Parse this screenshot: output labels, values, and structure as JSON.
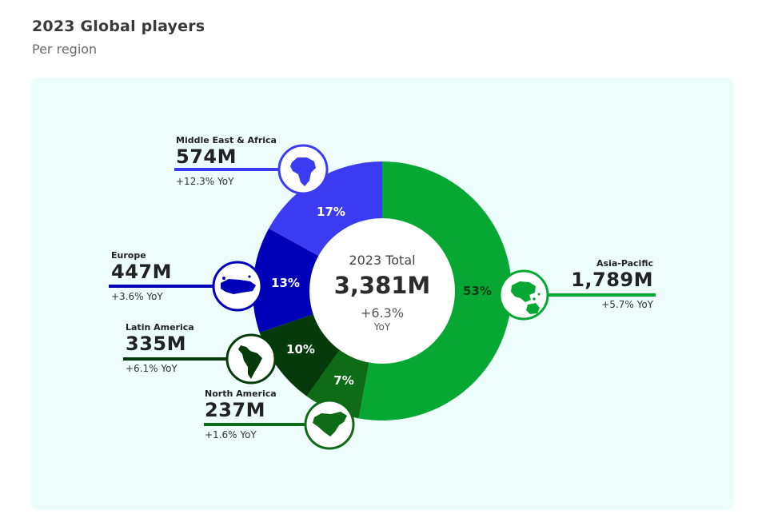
{
  "header": {
    "title": "2023 Global players",
    "subtitle": "Per region"
  },
  "colors": {
    "asia_pacific": "#06a833",
    "north_america": "#0e6b16",
    "latin_america": "#053b0a",
    "europe": "#0000b8",
    "middle_east_africa": "#3b3bf2",
    "panel_background": "#ecfdfc"
  },
  "center": {
    "title": "2023 Total",
    "value": "3,381M",
    "yoy": "+6.3%",
    "yoy_label": "YoY"
  },
  "regions": {
    "asia_pacific": {
      "name": "Asia-Pacific",
      "value": "1,789M",
      "yoy": "+5.7% YoY",
      "icon": "asia-pacific-map-icon"
    },
    "north_america": {
      "name": "North America",
      "value": "237M",
      "yoy": "+1.6% YoY",
      "icon": "north-america-map-icon"
    },
    "latin_america": {
      "name": "Latin America",
      "value": "335M",
      "yoy": "+6.1% YoY",
      "icon": "latin-america-map-icon"
    },
    "europe": {
      "name": "Europe",
      "value": "447M",
      "yoy": "+3.6% YoY",
      "icon": "europe-map-icon"
    },
    "middle_east_africa": {
      "name": "Middle East & Africa",
      "value": "574M",
      "yoy": "+12.3% YoY",
      "icon": "africa-map-icon"
    }
  },
  "chart_data": {
    "type": "pie",
    "title": "2023 Global players",
    "subtitle": "Per region",
    "categories": [
      "Asia-Pacific",
      "North America",
      "Latin America",
      "Europe",
      "Middle East & Africa"
    ],
    "values": [
      1789,
      237,
      335,
      447,
      574
    ],
    "percent_labels": [
      "53%",
      "7%",
      "10%",
      "13%",
      "17%"
    ],
    "total": 3381,
    "yoy": [
      "+5.7%",
      "+1.6%",
      "+6.1%",
      "+3.6%",
      "+12.3%"
    ],
    "total_yoy": "+6.3%"
  }
}
